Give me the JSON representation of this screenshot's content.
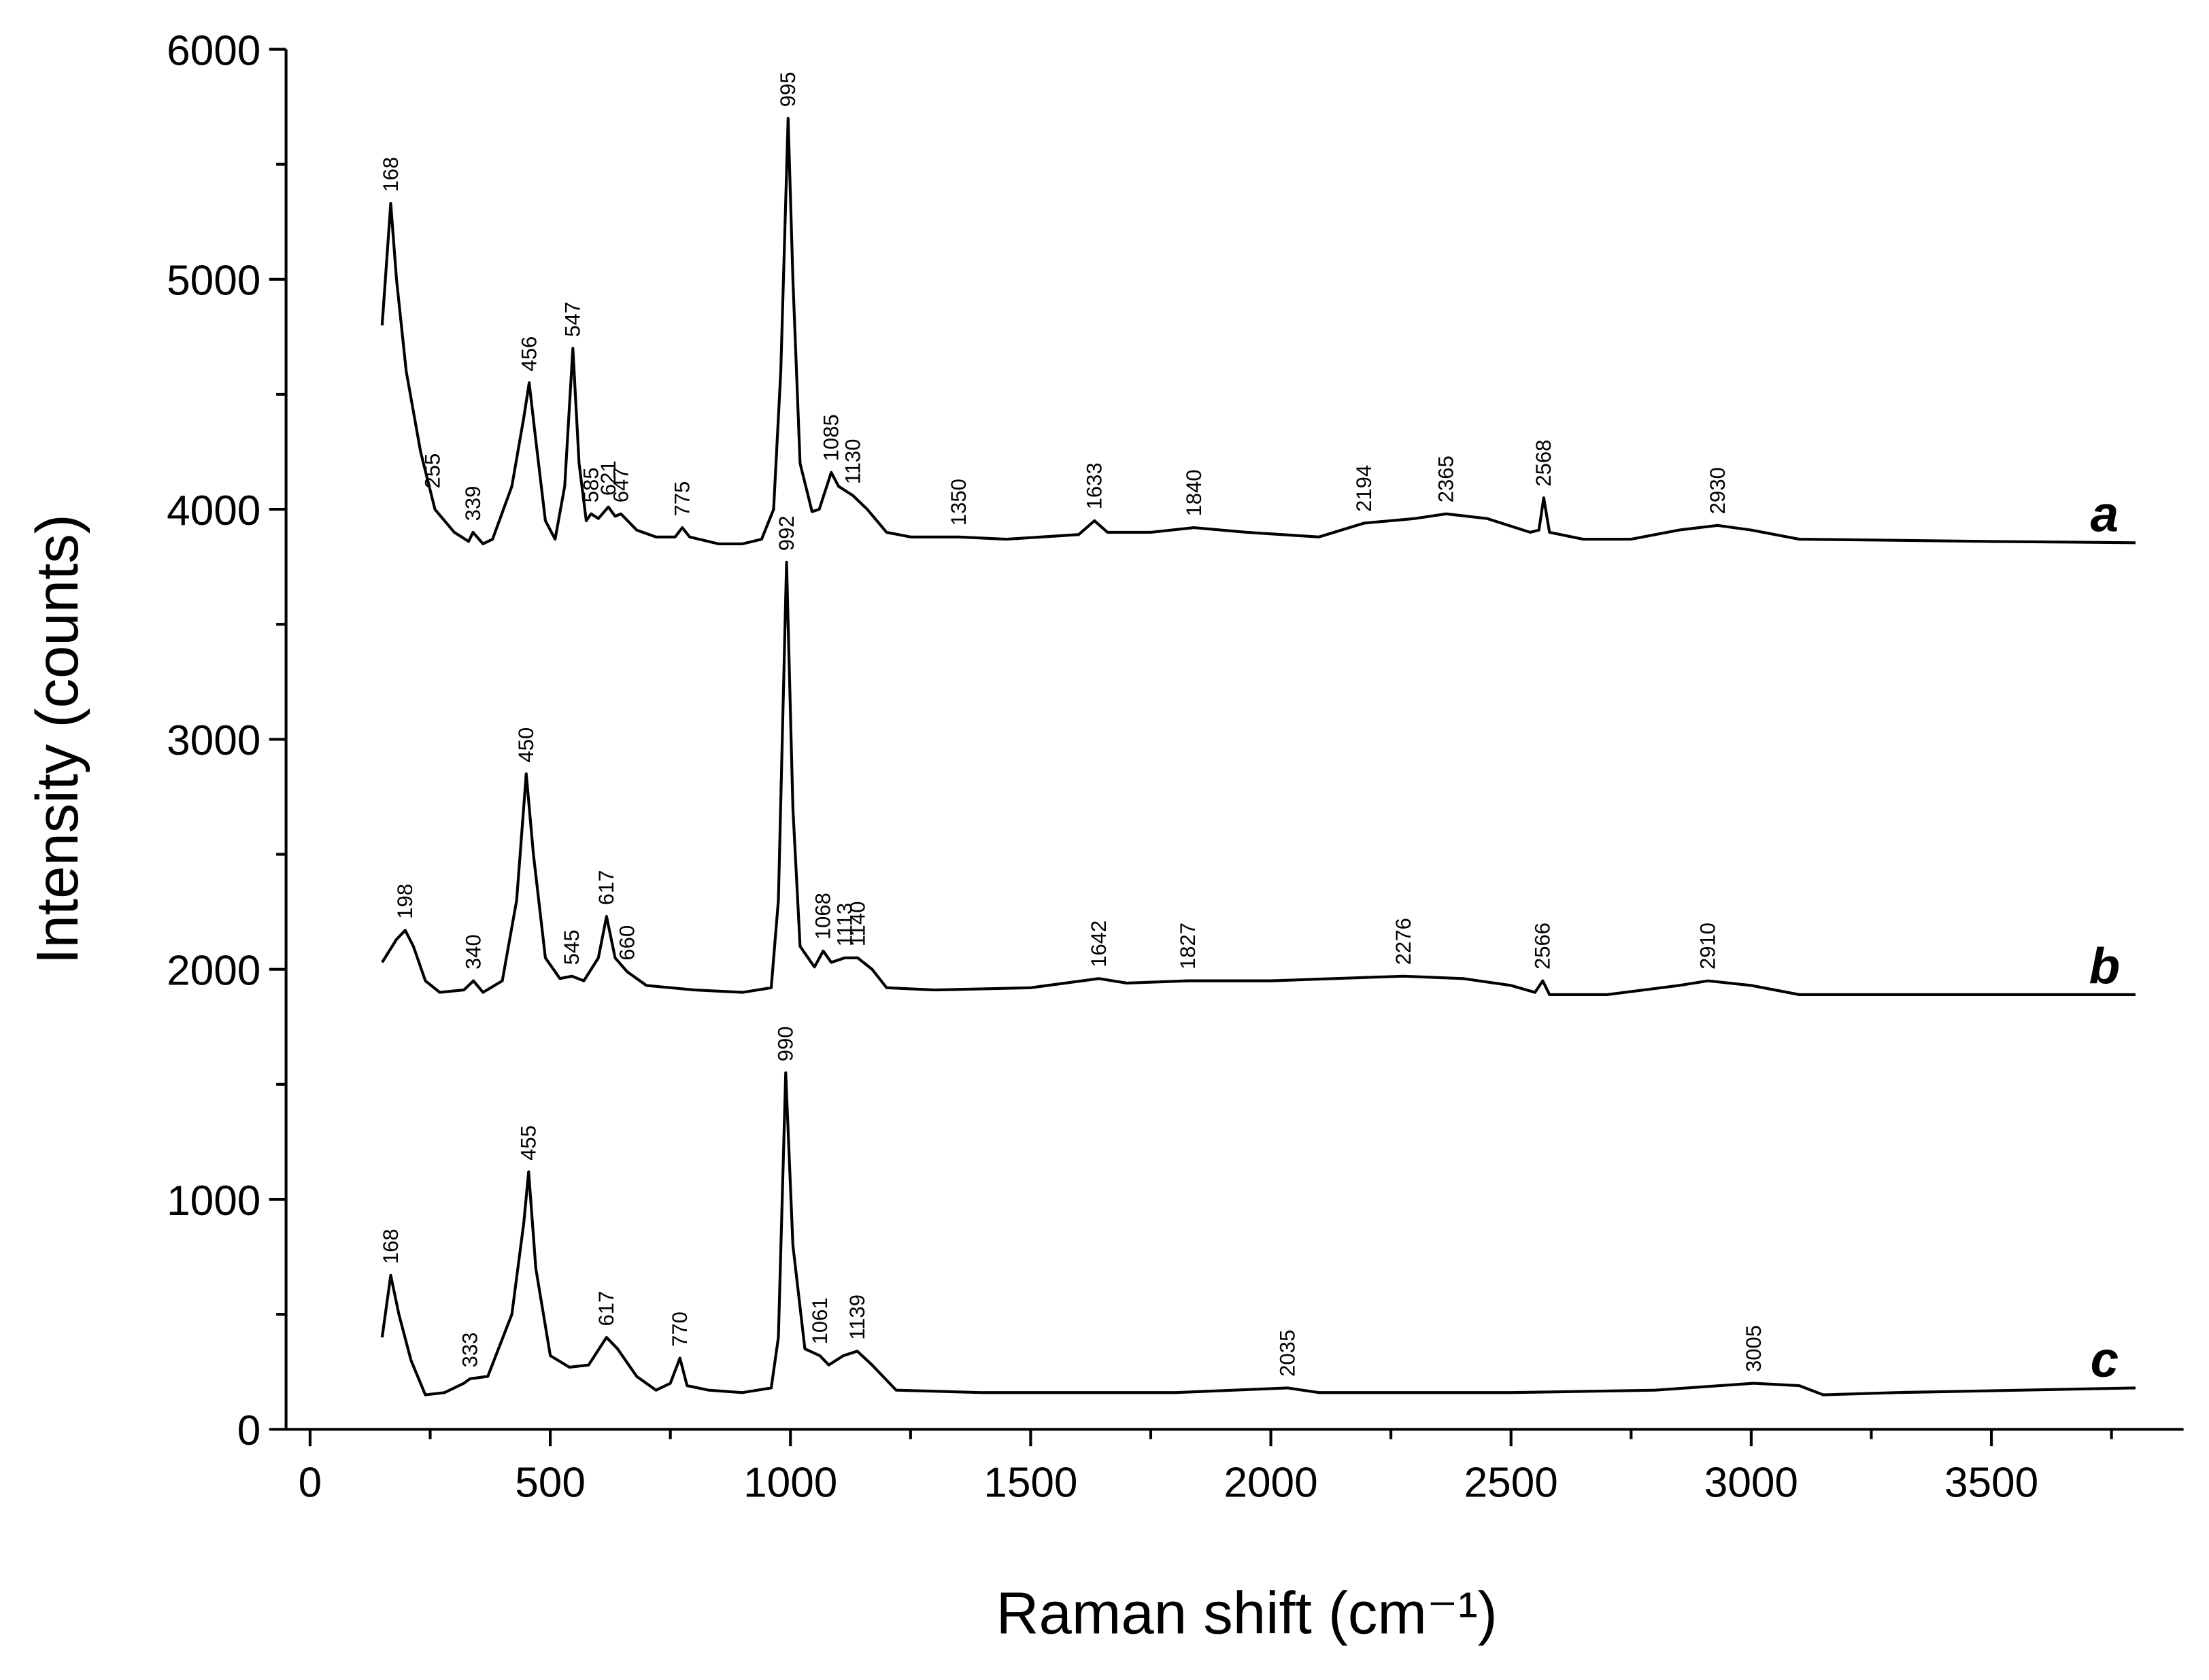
{
  "chart_data": {
    "type": "line",
    "xlabel": "Raman shift (cm⁻¹)",
    "ylabel": "Intensity (counts)",
    "xlim": [
      -50,
      3900
    ],
    "ylim": [
      0,
      6000
    ],
    "xticks": [
      0,
      500,
      1000,
      1500,
      2000,
      2500,
      3000,
      3500
    ],
    "yticks": [
      0,
      1000,
      2000,
      3000,
      4000,
      5000,
      6000
    ],
    "xminorticks": [
      250,
      750,
      1250,
      1750,
      2250,
      2750,
      3250,
      3750
    ],
    "yminorticks": [
      500,
      1500,
      2500,
      3500,
      4500,
      5500
    ],
    "series": [
      {
        "name": "a",
        "color": "#000000",
        "x": [
          150,
          168,
          180,
          200,
          230,
          260,
          300,
          330,
          339,
          360,
          380,
          420,
          445,
          456,
          470,
          490,
          510,
          530,
          547,
          560,
          575,
          585,
          600,
          621,
          635,
          647,
          680,
          720,
          760,
          775,
          790,
          850,
          900,
          940,
          965,
          980,
          995,
          1005,
          1020,
          1045,
          1060,
          1085,
          1100,
          1130,
          1160,
          1200,
          1250,
          1350,
          1450,
          1600,
          1633,
          1660,
          1750,
          1840,
          1950,
          2100,
          2194,
          2300,
          2365,
          2450,
          2540,
          2558,
          2568,
          2580,
          2650,
          2750,
          2850,
          2930,
          3000,
          3100,
          3300,
          3500,
          3800
        ],
        "values": [
          4800,
          5330,
          5000,
          4600,
          4250,
          4000,
          3900,
          3860,
          3900,
          3850,
          3870,
          4100,
          4400,
          4550,
          4300,
          3950,
          3870,
          4100,
          4700,
          4200,
          3950,
          3980,
          3960,
          4010,
          3970,
          3980,
          3910,
          3880,
          3880,
          3920,
          3880,
          3850,
          3850,
          3870,
          4000,
          4600,
          5700,
          5000,
          4200,
          3990,
          4000,
          4160,
          4100,
          4060,
          4000,
          3900,
          3880,
          3880,
          3870,
          3890,
          3950,
          3900,
          3900,
          3920,
          3900,
          3880,
          3940,
          3960,
          3980,
          3960,
          3900,
          3910,
          4050,
          3900,
          3870,
          3870,
          3910,
          3930,
          3910,
          3870,
          3865,
          3860,
          3855
        ],
        "peaks": [
          168,
          255,
          339,
          456,
          547,
          585,
          621,
          647,
          775,
          995,
          1085,
          1130,
          1350,
          1633,
          1840,
          2194,
          2365,
          2568,
          2930
        ]
      },
      {
        "name": "b",
        "color": "#000000",
        "x": [
          150,
          180,
          198,
          215,
          240,
          270,
          320,
          340,
          360,
          400,
          430,
          450,
          465,
          490,
          520,
          545,
          570,
          600,
          617,
          635,
          660,
          700,
          800,
          900,
          960,
          975,
          992,
          1005,
          1020,
          1050,
          1068,
          1085,
          1113,
          1140,
          1170,
          1200,
          1300,
          1500,
          1642,
          1700,
          1827,
          2000,
          2276,
          2400,
          2500,
          2550,
          2566,
          2580,
          2700,
          2850,
          2910,
          3000,
          3100,
          3400,
          3800
        ],
        "values": [
          2030,
          2130,
          2170,
          2100,
          1950,
          1900,
          1910,
          1950,
          1900,
          1950,
          2300,
          2850,
          2500,
          2050,
          1960,
          1970,
          1950,
          2050,
          2230,
          2050,
          1990,
          1930,
          1910,
          1900,
          1920,
          2300,
          3770,
          2700,
          2100,
          2010,
          2080,
          2030,
          2050,
          2050,
          2000,
          1920,
          1910,
          1920,
          1960,
          1940,
          1950,
          1950,
          1970,
          1960,
          1930,
          1900,
          1950,
          1890,
          1890,
          1930,
          1950,
          1930,
          1890,
          1890,
          1890
        ],
        "peaks": [
          198,
          340,
          450,
          545,
          617,
          660,
          992,
          1068,
          1113,
          1140,
          1642,
          1827,
          2276,
          2566,
          2910
        ]
      },
      {
        "name": "c",
        "color": "#000000",
        "x": [
          150,
          168,
          185,
          210,
          240,
          280,
          320,
          333,
          370,
          420,
          445,
          455,
          470,
          500,
          540,
          580,
          617,
          640,
          680,
          720,
          750,
          770,
          785,
          830,
          900,
          960,
          975,
          990,
          1005,
          1030,
          1061,
          1080,
          1110,
          1139,
          1170,
          1220,
          1400,
          1800,
          2035,
          2100,
          2500,
          2800,
          3005,
          3100,
          3150,
          3300,
          3800
        ],
        "values": [
          400,
          670,
          500,
          300,
          150,
          160,
          200,
          220,
          230,
          500,
          900,
          1120,
          700,
          320,
          270,
          280,
          400,
          350,
          230,
          170,
          200,
          310,
          190,
          170,
          160,
          180,
          400,
          1550,
          800,
          350,
          320,
          280,
          320,
          340,
          280,
          170,
          160,
          160,
          180,
          160,
          160,
          170,
          200,
          190,
          150,
          160,
          180
        ],
        "peaks": [
          168,
          333,
          455,
          617,
          770,
          990,
          1061,
          1139,
          2035,
          3005
        ]
      }
    ]
  }
}
